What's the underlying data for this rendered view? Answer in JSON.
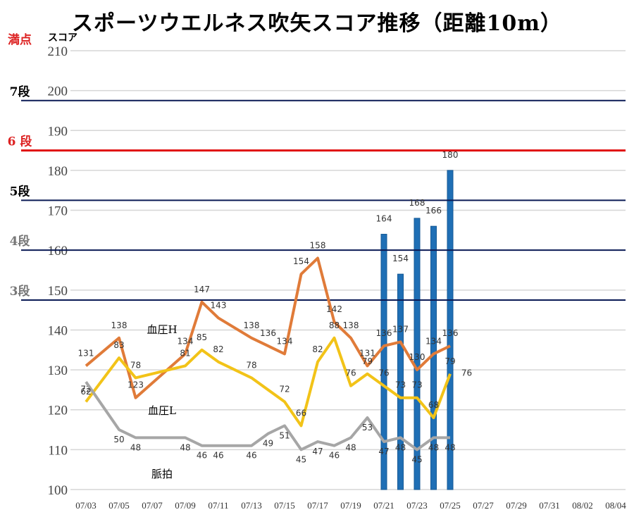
{
  "title": "スポーツウエルネス吹矢スコア推移（距離10m）",
  "chart_data": {
    "type": "bar",
    "title": "スポーツウエルネス吹矢スコア推移（距離10m）",
    "ylabel": "スコア",
    "ylim": [
      100,
      210
    ],
    "yticks": [
      100,
      110,
      120,
      130,
      140,
      150,
      160,
      170,
      180,
      190,
      200,
      210
    ],
    "x_tick_labels": [
      "07/03",
      "07/05",
      "07/07",
      "07/09",
      "07/11",
      "07/13",
      "07/15",
      "07/17",
      "07/19",
      "07/21",
      "07/23",
      "07/25",
      "07/27",
      "07/29",
      "07/31",
      "08/02",
      "08/04"
    ],
    "grid": true,
    "bars": {
      "color": "#1f6fb5",
      "points": [
        {
          "day": 21,
          "value": 164
        },
        {
          "day": 22,
          "value": 154
        },
        {
          "day": 23,
          "value": 168
        },
        {
          "day": 24,
          "value": 166
        },
        {
          "day": 25,
          "value": 180
        }
      ]
    },
    "bar_label_texts": [
      "164",
      "154",
      "168",
      "166",
      "180"
    ],
    "level_lines": [
      {
        "label": "満点",
        "value": 210,
        "color": "#d22",
        "line": false
      },
      {
        "label": "7段",
        "value": 197.5,
        "color": "#000",
        "line": true,
        "line_color": "#0a1a55"
      },
      {
        "label": "6 段",
        "value": 185,
        "color": "#d22",
        "line": true,
        "line_color": "#e01010"
      },
      {
        "label": "5段",
        "value": 172.5,
        "color": "#000",
        "line": true,
        "line_color": "#0a1a55"
      },
      {
        "label": "4段",
        "value": 160,
        "color": "#777",
        "line": true,
        "line_color": "#0a1a55"
      },
      {
        "label": "3段",
        "value": 147.5,
        "color": "#777",
        "line": true,
        "line_color": "#0a1a55"
      }
    ],
    "series": [
      {
        "name": "血圧H",
        "color": "#e07b39",
        "points": [
          {
            "day": 3,
            "value": 131
          },
          {
            "day": 5,
            "value": 138
          },
          {
            "day": 6,
            "value": 123
          },
          {
            "day": 9,
            "value": 134
          },
          {
            "day": 10,
            "value": 147
          },
          {
            "day": 11,
            "value": 143
          },
          {
            "day": 13,
            "value": 138
          },
          {
            "day": 14,
            "value": 136
          },
          {
            "day": 15,
            "value": 134
          },
          {
            "day": 16,
            "value": 154
          },
          {
            "day": 17,
            "value": 158
          },
          {
            "day": 18,
            "value": 142
          },
          {
            "day": 19,
            "value": 138
          },
          {
            "day": 20,
            "value": 131
          },
          {
            "day": 21,
            "value": 136
          },
          {
            "day": 22,
            "value": 137
          },
          {
            "day": 23,
            "value": 130
          },
          {
            "day": 24,
            "value": 134
          },
          {
            "day": 25,
            "value": 136
          }
        ]
      },
      {
        "name": "血圧L",
        "color": "#f2c318",
        "points": [
          {
            "day": 3,
            "value": 72
          },
          {
            "day": 5,
            "value": 83
          },
          {
            "day": 6,
            "value": 78
          },
          {
            "day": 9,
            "value": 81
          },
          {
            "day": 10,
            "value": 85
          },
          {
            "day": 11,
            "value": 82
          },
          {
            "day": 13,
            "value": 78
          },
          {
            "day": 15,
            "value": 72
          },
          {
            "day": 16,
            "value": 66
          },
          {
            "day": 17,
            "value": 82
          },
          {
            "day": 18,
            "value": 88
          },
          {
            "day": 19,
            "value": 76
          },
          {
            "day": 20,
            "value": 79
          },
          {
            "day": 21,
            "value": 76
          },
          {
            "day": 22,
            "value": 73
          },
          {
            "day": 23,
            "value": 73
          },
          {
            "day": 24,
            "value": 68
          },
          {
            "day": 25,
            "value": 79
          },
          {
            "day": 26,
            "value": 76
          }
        ]
      },
      {
        "name": "脈拍",
        "color": "#a6a6a6",
        "points": [
          {
            "day": 3,
            "value": 62
          },
          {
            "day": 5,
            "value": 50
          },
          {
            "day": 6,
            "value": 48
          },
          {
            "day": 9,
            "value": 48
          },
          {
            "day": 10,
            "value": 46
          },
          {
            "day": 11,
            "value": 46
          },
          {
            "day": 13,
            "value": 46
          },
          {
            "day": 14,
            "value": 49
          },
          {
            "day": 15,
            "value": 51
          },
          {
            "day": 16,
            "value": 45
          },
          {
            "day": 17,
            "value": 47
          },
          {
            "day": 18,
            "value": 46
          },
          {
            "day": 19,
            "value": 48
          },
          {
            "day": 20,
            "value": 53
          },
          {
            "day": 21,
            "value": 47
          },
          {
            "day": 22,
            "value": 48
          },
          {
            "day": 23,
            "value": 45
          },
          {
            "day": 24,
            "value": 48
          },
          {
            "day": 25,
            "value": 48
          }
        ]
      }
    ]
  }
}
